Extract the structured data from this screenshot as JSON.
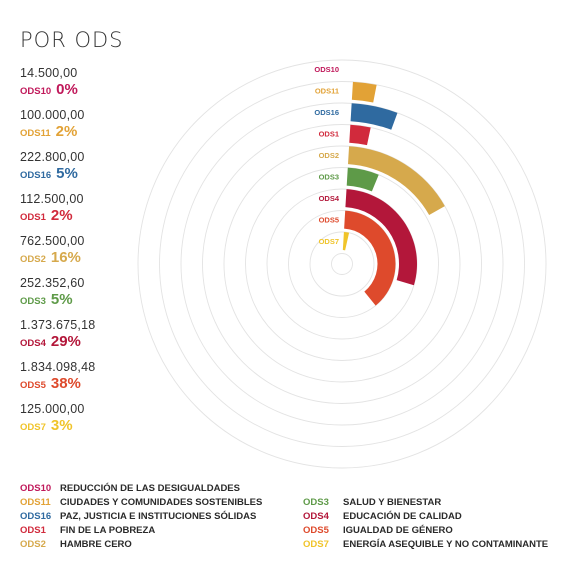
{
  "title": "POR ODS",
  "colors": {
    "ODS10": "#c0185a",
    "ODS11": "#e2a236",
    "ODS16": "#2f6aa0",
    "ODS1": "#d12a3c",
    "ODS2": "#d6a94c",
    "ODS3": "#5e9a48",
    "ODS4": "#b3173a",
    "ODS5": "#de4a2c",
    "ODS7": "#f0c42a"
  },
  "stats": [
    {
      "code": "ODS10",
      "amount": "14.500,00",
      "pct": "0%"
    },
    {
      "code": "ODS11",
      "amount": "100.000,00",
      "pct": "2%"
    },
    {
      "code": "ODS16",
      "amount": "222.800,00",
      "pct": "5%"
    },
    {
      "code": "ODS1",
      "amount": "112.500,00",
      "pct": "2%"
    },
    {
      "code": "ODS2",
      "amount": "762.500,00",
      "pct": "16%"
    },
    {
      "code": "ODS3",
      "amount": "252.352,60",
      "pct": "5%"
    },
    {
      "code": "ODS4",
      "amount": "1.373.675,18",
      "pct": "29%"
    },
    {
      "code": "ODS5",
      "amount": "1.834.098,48",
      "pct": "38%"
    },
    {
      "code": "ODS7",
      "amount": "125.000,00",
      "pct": "3%"
    }
  ],
  "chart_data": {
    "type": "radial-bar",
    "categories": [
      "ODS10",
      "ODS11",
      "ODS16",
      "ODS1",
      "ODS2",
      "ODS3",
      "ODS4",
      "ODS5",
      "ODS7"
    ],
    "values": [
      14500.0,
      100000.0,
      222800.0,
      112500.0,
      762500.0,
      252352.6,
      1373675.18,
      1834098.48,
      125000.0
    ],
    "percentages": [
      0,
      2,
      5,
      2,
      16,
      5,
      29,
      38,
      3
    ],
    "full_circle_value": 4800000
  },
  "legend": {
    "left": [
      {
        "code": "ODS10",
        "label": "REDUCCIÓN DE LAS DESIGUALDADES"
      },
      {
        "code": "ODS11",
        "label": "CIUDADES Y COMUNIDADES SOSTENIBLES"
      },
      {
        "code": "ODS16",
        "label": "PAZ, JUSTICIA E INSTITUCIONES SÓLIDAS"
      },
      {
        "code": "ODS1",
        "label": "FIN DE LA POBREZA"
      },
      {
        "code": "ODS2",
        "label": "HAMBRE CERO"
      }
    ],
    "right": [
      {
        "code": "ODS3",
        "label": "SALUD Y BIENESTAR"
      },
      {
        "code": "ODS4",
        "label": "EDUCACIÓN DE CALIDAD"
      },
      {
        "code": "ODS5",
        "label": "IGUALDAD DE GÉNERO"
      },
      {
        "code": "ODS7",
        "label": "ENERGÍA ASEQUIBLE Y NO CONTAMINANTE"
      }
    ]
  }
}
